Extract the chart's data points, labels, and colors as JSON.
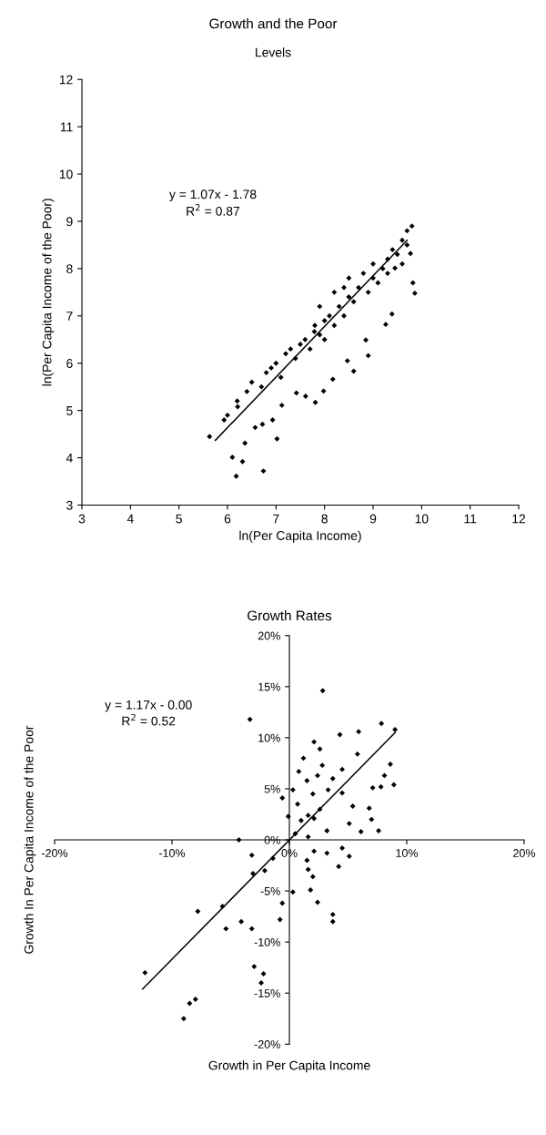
{
  "chart_data": [
    {
      "type": "scatter",
      "title": "Growth and the Poor",
      "subtitle": "Levels",
      "xlabel": "ln(Per Capita Income)",
      "ylabel": "ln(Per Capita Income of the Poor)",
      "xlim": [
        3,
        12
      ],
      "ylim": [
        3,
        12
      ],
      "xticks": [
        3,
        4,
        5,
        6,
        7,
        8,
        9,
        10,
        11,
        12
      ],
      "yticks": [
        3,
        4,
        5,
        6,
        7,
        8,
        9,
        10,
        11,
        12
      ],
      "grid": false,
      "legend": false,
      "marker": "diamond",
      "annotations": [
        "y = 1.07x - 1.78",
        "R$^{2}$ = 0.87"
      ],
      "series": [
        {
          "color": "#000000",
          "x": [
            5.63,
            6.1,
            6.31,
            6.18,
            6.74,
            6.36,
            7.02,
            6.57,
            6.72,
            6.93,
            5.93,
            6.21,
            7.12,
            7.42,
            7.81,
            7.98,
            7.61,
            8.17,
            8.6,
            8.47,
            8.85,
            8.9,
            9.26,
            9.39,
            9.86,
            9.82,
            9.77,
            9.45,
            7.79,
            6.0,
            6.2,
            6.4,
            6.5,
            6.7,
            6.8,
            6.9,
            7.0,
            7.1,
            7.2,
            7.3,
            7.4,
            7.5,
            7.6,
            7.7,
            7.8,
            7.9,
            8.0,
            8.0,
            8.1,
            8.2,
            8.3,
            8.4,
            8.5,
            8.5,
            8.6,
            8.7,
            8.8,
            8.9,
            9.0,
            9.0,
            9.1,
            9.2,
            9.3,
            9.3,
            9.4,
            9.5,
            9.6,
            9.6,
            9.7,
            9.7,
            9.8,
            7.9,
            8.2,
            8.4
          ],
          "values": [
            4.45,
            4.01,
            3.92,
            3.61,
            3.72,
            4.31,
            4.4,
            4.64,
            4.71,
            4.8,
            4.8,
            5.08,
            5.11,
            5.37,
            5.17,
            5.41,
            5.3,
            5.66,
            5.83,
            6.05,
            6.49,
            6.16,
            6.82,
            7.04,
            7.48,
            7.7,
            8.32,
            8.01,
            6.67,
            4.9,
            5.2,
            5.4,
            5.6,
            5.5,
            5.8,
            5.9,
            6.0,
            5.7,
            6.2,
            6.3,
            6.1,
            6.4,
            6.5,
            6.3,
            6.8,
            6.6,
            6.9,
            6.5,
            7.0,
            6.8,
            7.2,
            7.0,
            7.4,
            7.8,
            7.3,
            7.6,
            7.9,
            7.5,
            7.8,
            8.1,
            7.7,
            8.0,
            8.2,
            7.9,
            8.4,
            8.3,
            8.6,
            8.1,
            8.8,
            8.5,
            8.9,
            7.2,
            7.5,
            7.6
          ]
        },
        {
          "type": "line",
          "color": "#000000",
          "marker": "none",
          "x": [
            5.75,
            9.7
          ],
          "values": [
            4.37,
            8.6
          ]
        }
      ]
    },
    {
      "type": "scatter",
      "title": "Growth Rates",
      "xlabel": "Growth in Per Capita Income",
      "ylabel": "Growth In Per Capita Income of the Poor",
      "xlim": [
        -20,
        20
      ],
      "ylim": [
        -20,
        20
      ],
      "xticks": [
        {
          "value": -20,
          "label": "-20%"
        },
        {
          "value": -10,
          "label": "-10%"
        },
        {
          "value": 0,
          "label": "0%"
        },
        {
          "value": 10,
          "label": "10%"
        },
        {
          "value": 20,
          "label": "20%"
        }
      ],
      "yticks": [
        {
          "value": -20,
          "label": "-20%"
        },
        {
          "value": -15,
          "label": "-15%"
        },
        {
          "value": -10,
          "label": "-10%"
        },
        {
          "value": -5,
          "label": "-5%"
        },
        {
          "value": 0,
          "label": "0%"
        },
        {
          "value": 5,
          "label": "5%"
        },
        {
          "value": 10,
          "label": "10%"
        },
        {
          "value": 15,
          "label": "15%"
        },
        {
          "value": 20,
          "label": "20%"
        }
      ],
      "grid": false,
      "legend": false,
      "marker": "diamond",
      "annotations": [
        "y = 1.17x - 0.00",
        "R$^{2}$ = 0.52"
      ],
      "series": [
        {
          "color": "#000000",
          "x": [
            2.84,
            -3.36,
            7.84,
            9.0,
            5.9,
            4.3,
            2.1,
            2.6,
            5.8,
            1.2,
            2.8,
            0.8,
            4.5,
            8.6,
            8.1,
            2.4,
            3.7,
            1.5,
            8.9,
            7.1,
            7.8,
            3.3,
            0.3,
            2.0,
            4.5,
            -0.6,
            0.7,
            2.6,
            1.6,
            -0.1,
            1.0,
            2.1,
            5.4,
            6.8,
            7.0,
            5.1,
            3.2,
            6.1,
            7.6,
            0.5,
            1.6,
            -4.3,
            4.5,
            2.1,
            3.2,
            5.1,
            -3.2,
            -1.4,
            1.5,
            4.2,
            -3.1,
            -2.1,
            1.6,
            2.0,
            0.3,
            1.8,
            -0.6,
            2.4,
            3.7,
            3.7,
            -7.8,
            -5.7,
            -4.1,
            -5.4,
            -3.2,
            -0.8,
            -12.3,
            -2.2,
            -8.5,
            -9.0,
            -8.0,
            -3.0,
            -2.4
          ],
          "values": [
            14.6,
            11.8,
            11.4,
            10.8,
            10.6,
            10.3,
            9.6,
            8.9,
            8.4,
            8.0,
            7.3,
            6.7,
            6.9,
            7.4,
            6.3,
            6.3,
            6.0,
            5.8,
            5.4,
            5.1,
            5.2,
            4.9,
            4.9,
            4.5,
            4.6,
            4.1,
            3.5,
            3.0,
            2.4,
            2.3,
            1.9,
            2.1,
            3.3,
            3.1,
            2.0,
            1.6,
            0.9,
            0.8,
            0.9,
            0.6,
            0.3,
            0.0,
            -0.8,
            -1.1,
            -1.3,
            -1.6,
            -1.5,
            -1.8,
            -2.0,
            -2.6,
            -3.3,
            -3.0,
            -2.9,
            -3.6,
            -5.1,
            -4.9,
            -6.2,
            -6.1,
            -7.3,
            -8.0,
            -7.0,
            -6.5,
            -8.0,
            -8.7,
            -8.7,
            -7.8,
            -13.0,
            -13.1,
            -16.0,
            -17.5,
            -15.6,
            -12.4,
            -14.0
          ]
        },
        {
          "type": "line",
          "color": "#000000",
          "marker": "none",
          "x": [
            -12.5,
            9.0
          ],
          "values": [
            -14.6,
            10.5
          ]
        }
      ]
    }
  ]
}
